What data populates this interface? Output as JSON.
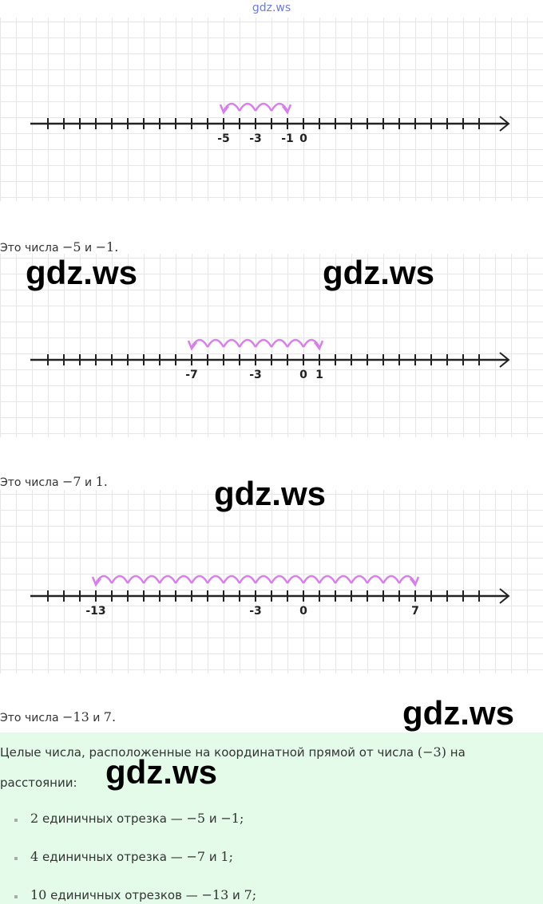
{
  "header": {
    "site": "gdz.ws"
  },
  "panels": [
    {
      "labels": [
        -5,
        -3,
        -1,
        0
      ],
      "caption": {
        "prefix": "Это числа",
        "a": -5,
        "joiner": "и",
        "b": -1,
        "end": "."
      }
    },
    {
      "labels": [
        -7,
        -3,
        0,
        1
      ],
      "caption": {
        "prefix": "Это числа",
        "a": -7,
        "joiner": "и",
        "b": 1,
        "end": "."
      }
    },
    {
      "labels": [
        -13,
        -3,
        0,
        7
      ],
      "caption": {
        "prefix": "Это числа",
        "a": -13,
        "joiner": "и",
        "b": 7,
        "end": "."
      }
    }
  ],
  "watermarks": [
    "gdz.ws",
    "gdz.ws",
    "gdz.ws",
    "gdz.ws",
    "gdz.ws"
  ],
  "summary": {
    "intro": "Целые числа, расположенные на координатной прямой от числа",
    "center": "(−3)",
    "intro_end": "на расстоянии:",
    "items": [
      {
        "n": "2",
        "text": "единичных отрезка —",
        "a": "−5",
        "joiner": "и",
        "b": "−1;"
      },
      {
        "n": "4",
        "text": "единичных отрезка —",
        "a": "−7",
        "joiner": "и",
        "b": "1;"
      },
      {
        "n": "10",
        "text": "единичных отрезков —",
        "a": "−13",
        "joiner": "и",
        "b": "7;"
      }
    ]
  }
}
